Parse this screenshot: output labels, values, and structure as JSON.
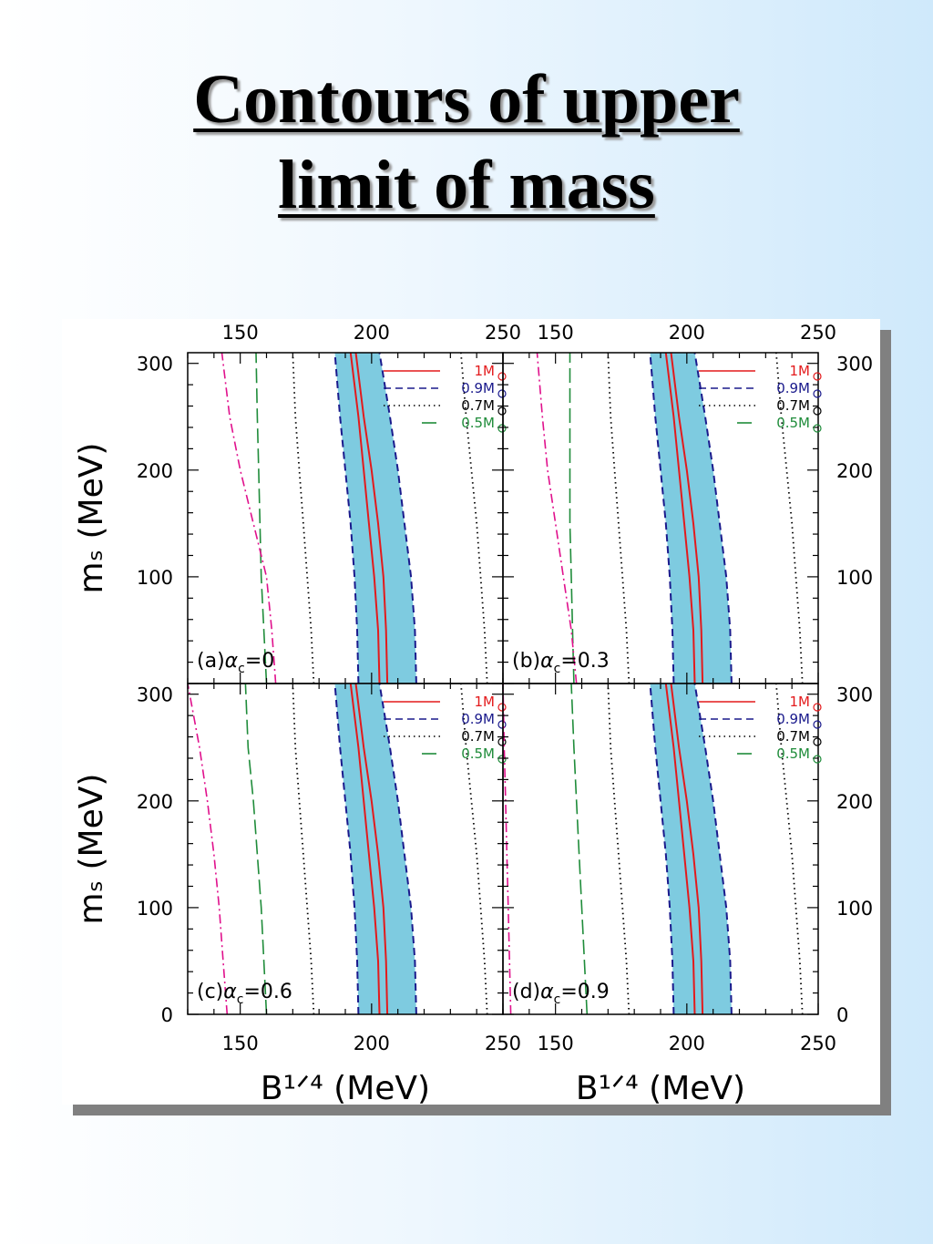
{
  "title": {
    "line1": "Contours of upper",
    "line2": "limit of mass"
  },
  "colors": {
    "band_fill": "#7ecbe0",
    "band_edge": "#1a1a8c",
    "series_1": "#e31a1c",
    "series_09": "#1a1a8c",
    "series_07": "#000000",
    "series_05": "#1f8c3a",
    "dashdot": "#e0108c",
    "title_shadow": "#9a9a9a",
    "figure_shadow": "#808080"
  },
  "chart_data": {
    "type": "line",
    "layout": "2x2 panels",
    "xlabel": "B¹ᐟ⁴  (MeV)",
    "ylabel": "mₛ  (MeV)",
    "xlim": [
      130,
      250
    ],
    "ylim": [
      0,
      310
    ],
    "x_ticks": [
      "150",
      "200",
      "250"
    ],
    "y_ticks": [
      "0",
      "100",
      "200",
      "300"
    ],
    "legend": {
      "placement": "top-right",
      "entries": [
        {
          "mass": "1",
          "unit": "M",
          "style": "solid",
          "color": "#e31a1c"
        },
        {
          "mass": "0.9",
          "unit": "M",
          "style": "dashed",
          "color": "#1a1a8c"
        },
        {
          "mass": "0.7",
          "unit": "M",
          "style": "dotted",
          "color": "#000000"
        },
        {
          "mass": "0.5",
          "unit": "M",
          "style": "long-dash",
          "color": "#1f8c3a"
        }
      ]
    },
    "y_values": [
      0,
      50,
      100,
      150,
      200,
      250,
      310
    ],
    "panels": [
      {
        "label_prefix": "(a)",
        "alpha_symbol": "α",
        "alpha_sub": "c",
        "alpha_value": "=0",
        "band_left": [
          195,
          194.5,
          193.5,
          192,
          190,
          188,
          186
        ],
        "band_right": [
          217,
          216.5,
          215,
          212.5,
          210,
          207,
          203
        ],
        "red_left": [
          203,
          202.5,
          201,
          199,
          197,
          195,
          192
        ],
        "red_right": [
          206,
          205.5,
          204.5,
          202.5,
          200,
          197,
          194
        ],
        "dotted_left": [
          178,
          177,
          175.5,
          174,
          172.5,
          171,
          170
        ],
        "dotted_right": [
          244,
          243,
          241.5,
          240,
          238,
          236,
          234
        ],
        "green": [
          160,
          159,
          158,
          157.5,
          157,
          156.5,
          156
        ],
        "dashdot": [
          163.5,
          162,
          160,
          155,
          150,
          146,
          143
        ]
      },
      {
        "label_prefix": "(b)",
        "alpha_symbol": "α",
        "alpha_sub": "c",
        "alpha_value": "=0.3",
        "band_left": [
          195,
          194.5,
          193.5,
          192,
          190,
          188,
          186
        ],
        "band_right": [
          217,
          216.5,
          215,
          212.5,
          210,
          207,
          203
        ],
        "red_left": [
          203,
          202.5,
          201,
          199,
          197,
          195,
          192
        ],
        "red_right": [
          206,
          205.5,
          204.5,
          202.5,
          200,
          197,
          194
        ],
        "dotted_left": [
          178,
          177,
          175.5,
          174,
          172.5,
          171,
          170
        ],
        "dotted_right": [
          244,
          243,
          241.5,
          240,
          238,
          236,
          234
        ],
        "green": [
          157,
          156.5,
          156,
          155.5,
          155.5,
          155.5,
          155.5
        ],
        "dashdot": [
          158,
          156,
          153,
          150,
          147,
          145,
          143
        ]
      },
      {
        "label_prefix": "(c)",
        "alpha_symbol": "α",
        "alpha_sub": "c",
        "alpha_value": "=0.6",
        "band_left": [
          195,
          194.5,
          193.5,
          192,
          190,
          188,
          186
        ],
        "band_right": [
          217,
          216.5,
          215,
          212.5,
          210,
          207,
          203
        ],
        "red_left": [
          203,
          202.5,
          201,
          199,
          197,
          195,
          192
        ],
        "red_right": [
          206,
          205.5,
          204.5,
          202.5,
          200,
          197,
          194
        ],
        "dotted_left": [
          178,
          177,
          175.5,
          174,
          172.5,
          171,
          170
        ],
        "dotted_right": [
          244,
          243,
          241.5,
          240,
          238,
          236,
          234
        ],
        "green": [
          160,
          159,
          158,
          156.5,
          155,
          153,
          152
        ],
        "dashdot": [
          145,
          143.5,
          142,
          140,
          137.5,
          134.5,
          130
        ]
      },
      {
        "label_prefix": "(d)",
        "alpha_symbol": "α",
        "alpha_sub": "c",
        "alpha_value": "=0.9",
        "band_left": [
          195,
          194.5,
          193.5,
          192,
          190,
          188,
          186
        ],
        "band_right": [
          217,
          216.5,
          215,
          212.5,
          210,
          207,
          203
        ],
        "red_left": [
          203,
          202.5,
          201,
          199,
          197,
          195,
          192
        ],
        "red_right": [
          206,
          205.5,
          204.5,
          202.5,
          200,
          197,
          194
        ],
        "dotted_left": [
          178,
          177,
          175.5,
          174,
          172.5,
          171,
          170
        ],
        "dotted_right": [
          244,
          243,
          241.5,
          240,
          238,
          236,
          234
        ],
        "green": [
          162,
          161,
          160,
          159,
          158,
          157,
          156
        ],
        "dashdot": [
          133,
          132.5,
          132,
          131.5,
          131,
          130.5,
          130
        ]
      }
    ]
  }
}
